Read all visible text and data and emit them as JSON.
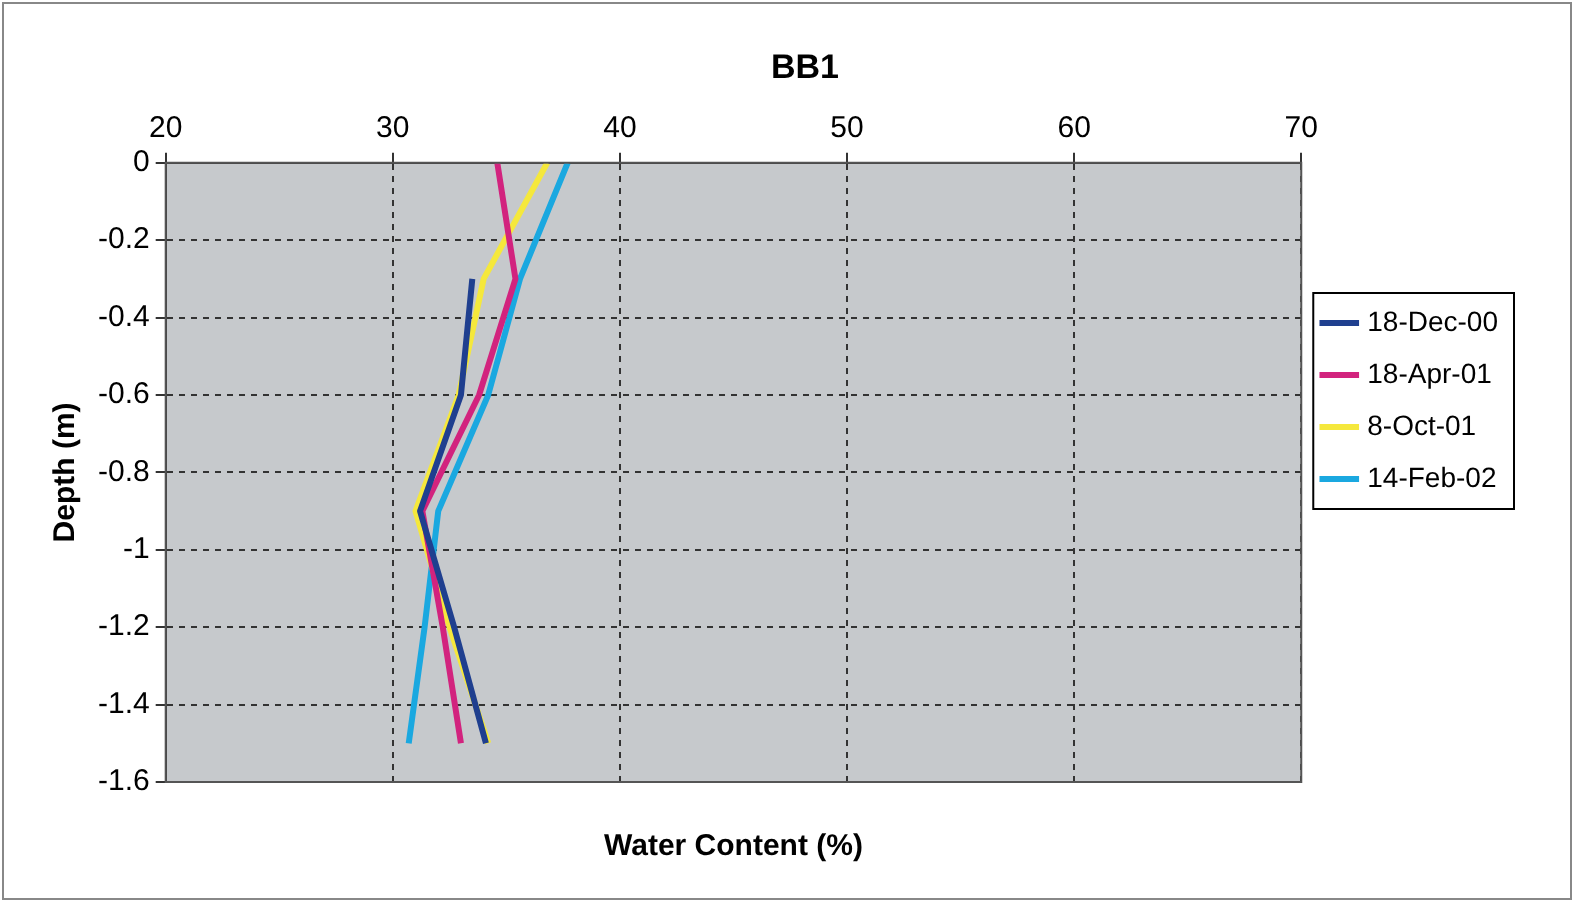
{
  "chart_data": {
    "type": "line",
    "title": "BB1",
    "xlabel": "Water Content (%)",
    "ylabel": "Depth (m)",
    "xlim": [
      20,
      70
    ],
    "xticks": [
      20,
      30,
      40,
      50,
      60,
      70
    ],
    "ylim": [
      -1.6,
      0
    ],
    "yticks": [
      0,
      -0.2,
      -0.4,
      -0.6,
      -0.8,
      -1,
      -1.2,
      -1.4,
      -1.6
    ],
    "grid": true,
    "legend": "right",
    "marker": "none",
    "line_style": "solid",
    "series": [
      {
        "name": "18-Dec-00",
        "color": "#1f3f8f",
        "x": [
          33.5,
          33.0,
          31.2,
          32.7,
          34.1
        ],
        "values": [
          -0.3,
          -0.6,
          -0.9,
          -1.2,
          -1.5
        ]
      },
      {
        "name": "18-Apr-01",
        "color": "#d2237e",
        "x": [
          34.6,
          35.4,
          33.8,
          31.3,
          32.2,
          33.0
        ],
        "values": [
          0,
          -0.3,
          -0.6,
          -0.9,
          -1.2,
          -1.5
        ]
      },
      {
        "name": "8-Oct-01",
        "color": "#f5e83c",
        "x": [
          36.8,
          34.0,
          32.9,
          31.0,
          32.5,
          34.2
        ],
        "values": [
          0,
          -0.3,
          -0.6,
          -0.9,
          -1.2,
          -1.5
        ]
      },
      {
        "name": "14-Feb-02",
        "color": "#1aa8e0",
        "x": [
          37.7,
          35.6,
          34.2,
          32.0,
          31.4,
          30.7
        ],
        "values": [
          0,
          -0.3,
          -0.6,
          -0.9,
          -1.2,
          -1.5
        ]
      }
    ]
  }
}
